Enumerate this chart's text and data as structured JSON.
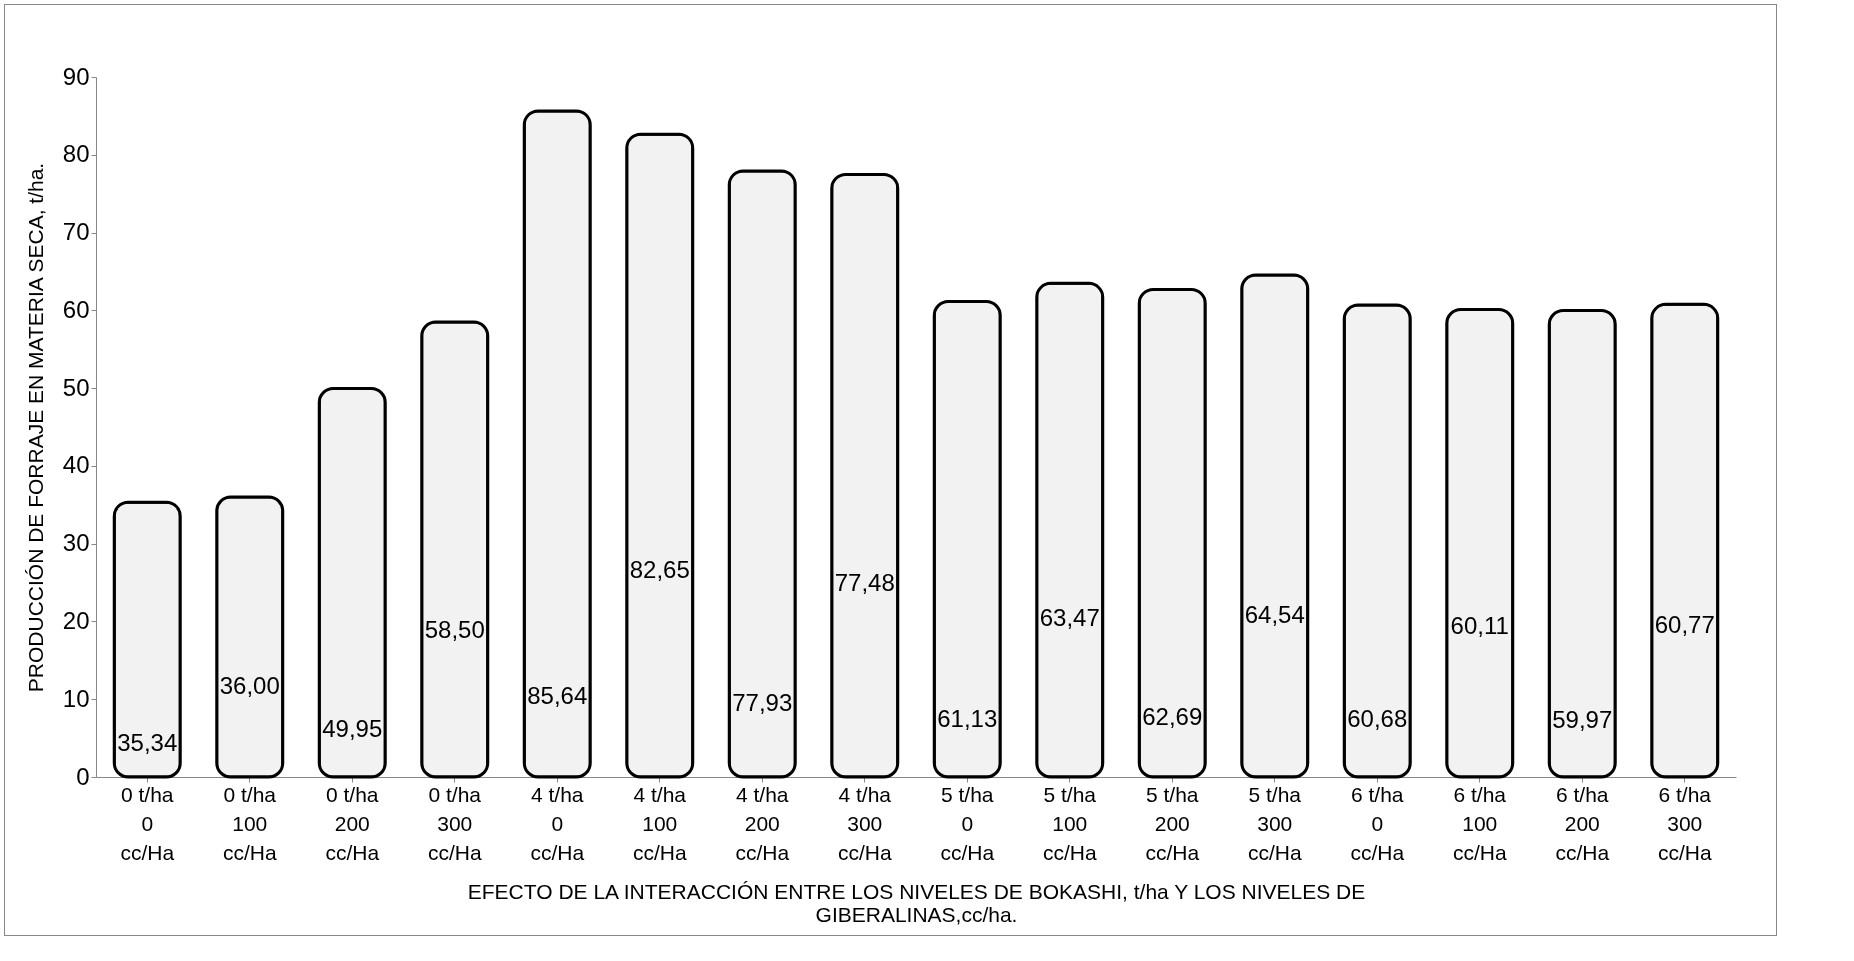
{
  "chart_data": {
    "type": "bar",
    "ylabel": "PRODUCCIÓN DE FORRAJE EN MATERIA SECA, t/ha.",
    "xlabel": "EFECTO DE LA INTERACCIÓN ENTRE LOS NIVELES DE BOKASHI, t/ha Y LOS NIVELES DE GIBERALINAS,cc/ha.",
    "categories": [
      "0 t/ha 0 cc/Ha",
      "0 t/ha 100 cc/Ha",
      "0 t/ha 200 cc/Ha",
      "0 t/ha 300 cc/Ha",
      "4 t/ha 0 cc/Ha",
      "4 t/ha 100 cc/Ha",
      "4 t/ha 200 cc/Ha",
      "4 t/ha 300 cc/Ha",
      "5 t/ha 0 cc/Ha",
      "5 t/ha 100 cc/Ha",
      "5 t/ha 200 cc/Ha",
      "5 t/ha 300 cc/Ha",
      "6 t/ha 0 cc/Ha",
      "6 t/ha 100 cc/Ha",
      "6 t/ha 200 cc/Ha",
      "6 t/ha 300 cc/Ha"
    ],
    "values": [
      35.34,
      36.0,
      49.95,
      58.5,
      85.64,
      82.65,
      77.93,
      77.48,
      61.13,
      63.47,
      62.69,
      64.54,
      60.68,
      60.11,
      59.97,
      60.77
    ],
    "value_labels": [
      "35,34",
      "36,00",
      "49,95",
      "58,50",
      "85,64",
      "82,65",
      "77,93",
      "77,48",
      "61,13",
      "63,47",
      "62,69",
      "64,54",
      "60,68",
      "60,11",
      "59,97",
      "60,77"
    ],
    "color": "#f2f2f2",
    "ylim": [
      0,
      90
    ],
    "yticks": [
      0,
      10,
      20,
      30,
      40,
      50,
      60,
      70,
      80,
      90
    ],
    "grid": false
  }
}
